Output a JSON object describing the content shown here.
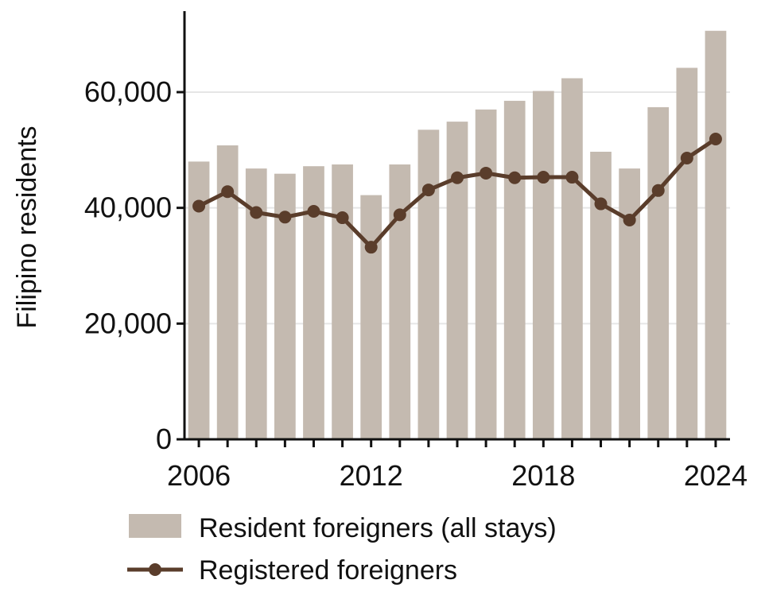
{
  "chart_data": {
    "type": "bar",
    "x": [
      2006,
      2007,
      2008,
      2009,
      2010,
      2011,
      2012,
      2013,
      2014,
      2015,
      2016,
      2017,
      2018,
      2019,
      2020,
      2021,
      2022,
      2023,
      2024
    ],
    "series": [
      {
        "name": "Resident foreigners (all stays)",
        "kind": "bar",
        "color": "#c4bab0",
        "values": [
          48000,
          50800,
          46800,
          45900,
          47200,
          47500,
          42200,
          47500,
          53500,
          54900,
          57000,
          58500,
          60200,
          62400,
          49700,
          46800,
          57400,
          64200,
          70600
        ]
      },
      {
        "name": "Registered foreigners",
        "kind": "line",
        "color": "#5a3d2b",
        "values": [
          40300,
          42800,
          39200,
          38400,
          39400,
          38300,
          33200,
          38800,
          43100,
          45200,
          46000,
          45200,
          45300,
          45300,
          40700,
          37900,
          43000,
          48600,
          51900
        ]
      }
    ],
    "ylabel": "Filipino residents",
    "xlabel": "",
    "title": "",
    "ylim": [
      0,
      74000
    ],
    "yticks": [
      0,
      20000,
      40000,
      60000
    ],
    "ytick_labels": [
      "0",
      "20,000",
      "40,000",
      "60,000"
    ],
    "xticks": [
      2006,
      2012,
      2018,
      2024
    ],
    "xtick_labels": [
      "2006",
      "2012",
      "2018",
      "2024"
    ],
    "grid": "horizontal",
    "legend_position": "bottom"
  }
}
